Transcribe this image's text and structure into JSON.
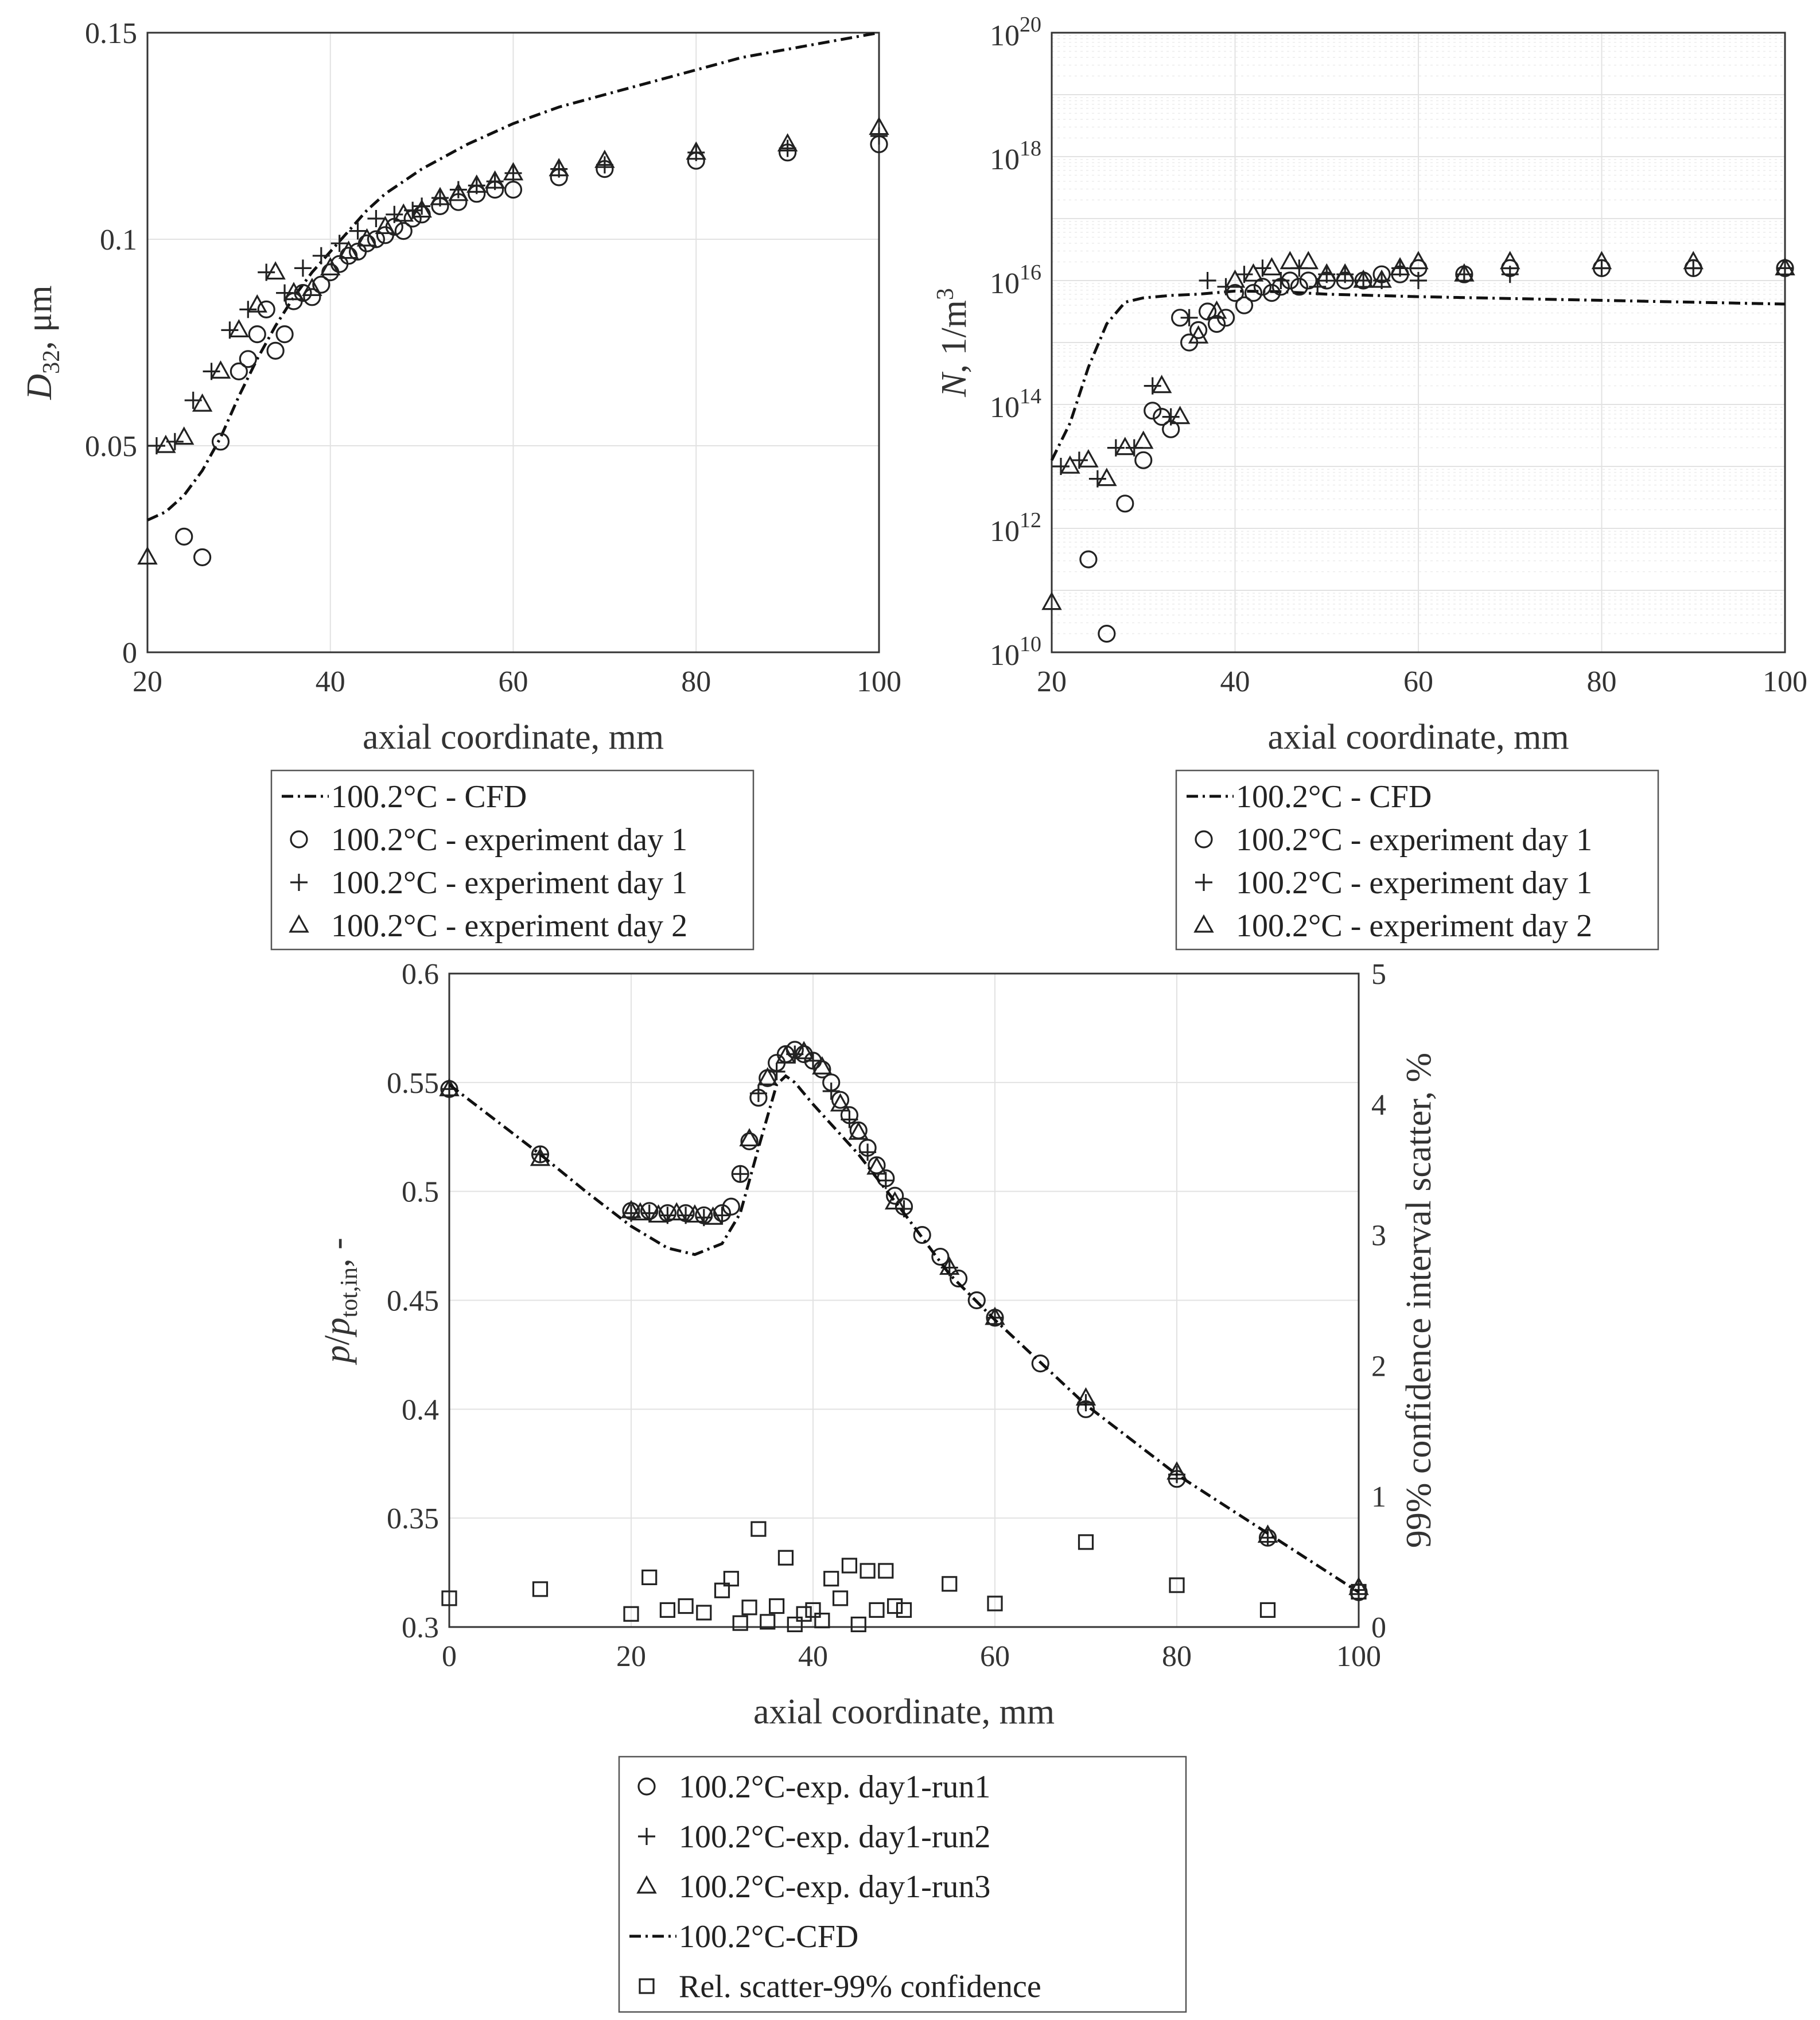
{
  "chart_data": [
    {
      "id": "d32",
      "type": "scatter",
      "xlabel": "axial coordinate, mm",
      "ylabel_main": "D",
      "ylabel_sub": "32",
      "ylabel_rest": ", μm",
      "xlim": [
        20,
        100
      ],
      "ylim": [
        0,
        0.15
      ],
      "xticks": [
        "20",
        "40",
        "60",
        "80",
        "100"
      ],
      "yticks": [
        "0",
        "0.05",
        "0.1",
        "0.15"
      ],
      "legend": [
        "100.2°C - CFD",
        "100.2°C - experiment day 1",
        "100.2°C - experiment day 1",
        "100.2°C - experiment day 2"
      ],
      "series": [
        {
          "name": "100.2°C - CFD",
          "marker": "line",
          "x": [
            20,
            22,
            24,
            26,
            28,
            30,
            32,
            34,
            36,
            38,
            40,
            42,
            44,
            46,
            48,
            50,
            55,
            60,
            65,
            70,
            75,
            80,
            85,
            90,
            95,
            100
          ],
          "y": [
            0.032,
            0.034,
            0.038,
            0.044,
            0.052,
            0.062,
            0.071,
            0.079,
            0.086,
            0.092,
            0.097,
            0.102,
            0.107,
            0.111,
            0.114,
            0.117,
            0.123,
            0.128,
            0.132,
            0.135,
            0.138,
            0.141,
            0.144,
            0.146,
            0.148,
            0.15
          ]
        },
        {
          "name": "100.2°C - experiment day 1 (circles)",
          "marker": "circle",
          "x": [
            24,
            26,
            28,
            30,
            31,
            32,
            33,
            34,
            35,
            36,
            37,
            38,
            39,
            40,
            41,
            42,
            43,
            44,
            45,
            46,
            47,
            48,
            49,
            50,
            52,
            54,
            56,
            58,
            60,
            65,
            70,
            80,
            90,
            100
          ],
          "y": [
            0.028,
            0.023,
            0.051,
            0.068,
            0.071,
            0.077,
            0.083,
            0.073,
            0.077,
            0.085,
            0.087,
            0.086,
            0.089,
            0.092,
            0.094,
            0.096,
            0.097,
            0.099,
            0.1,
            0.101,
            0.103,
            0.102,
            0.105,
            0.106,
            0.108,
            0.109,
            0.111,
            0.112,
            0.112,
            0.115,
            0.117,
            0.119,
            0.121,
            0.123
          ]
        },
        {
          "name": "100.2°C - experiment day 1 (plus)",
          "marker": "plus",
          "x": [
            21,
            23,
            25,
            27,
            29,
            31,
            33,
            35,
            37,
            39,
            41,
            43,
            45,
            47,
            49,
            50,
            52,
            54,
            56,
            58,
            60,
            65,
            70,
            80,
            90,
            100
          ],
          "y": [
            0.05,
            0.051,
            0.061,
            0.068,
            0.078,
            0.083,
            0.092,
            0.087,
            0.093,
            0.096,
            0.099,
            0.102,
            0.105,
            0.106,
            0.107,
            0.108,
            0.11,
            0.112,
            0.113,
            0.114,
            0.116,
            0.117,
            0.118,
            0.121,
            0.122,
            0.125
          ]
        },
        {
          "name": "100.2°C - experiment day 2",
          "marker": "triangle",
          "x": [
            20,
            22,
            24,
            26,
            28,
            30,
            32,
            34,
            36,
            38,
            40,
            42,
            44,
            46,
            48,
            50,
            52,
            54,
            56,
            58,
            60,
            65,
            70,
            80,
            90,
            100
          ],
          "y": [
            0.023,
            0.05,
            0.052,
            0.06,
            0.068,
            0.078,
            0.084,
            0.092,
            0.087,
            0.088,
            0.093,
            0.097,
            0.1,
            0.103,
            0.106,
            0.107,
            0.11,
            0.111,
            0.113,
            0.114,
            0.116,
            0.117,
            0.119,
            0.121,
            0.123,
            0.127
          ]
        }
      ]
    },
    {
      "id": "num",
      "type": "scatter",
      "yscale": "log",
      "xlabel": "axial coordinate, mm",
      "ylabel_main": "N",
      "ylabel_rest": ", 1/m",
      "ylabel_sup": "3",
      "xlim": [
        20,
        100
      ],
      "ylim_exp": [
        10,
        20
      ],
      "xticks": [
        "20",
        "40",
        "60",
        "80",
        "100"
      ],
      "yticks_base": "10",
      "yticks_exp": [
        "10",
        "12",
        "14",
        "16",
        "18",
        "20"
      ],
      "legend": [
        "100.2°C - CFD",
        "100.2°C - experiment day 1",
        "100.2°C - experiment day 1",
        "100.2°C - experiment day 2"
      ],
      "series": [
        {
          "name": "100.2°C - CFD",
          "marker": "line",
          "x": [
            20,
            22,
            24,
            26,
            28,
            30,
            33,
            36,
            40,
            45,
            50,
            60,
            70,
            80,
            90,
            100
          ],
          "y": [
            13.1,
            13.7,
            14.6,
            15.3,
            15.65,
            15.72,
            15.76,
            15.78,
            15.83,
            15.82,
            15.78,
            15.74,
            15.71,
            15.68,
            15.65,
            15.62
          ]
        },
        {
          "name": "100.2°C - experiment day 1 (circles)",
          "marker": "circle",
          "x": [
            24,
            26,
            28,
            30,
            31,
            32,
            33,
            34,
            35,
            36,
            37,
            38,
            39,
            40,
            41,
            42,
            43,
            44,
            45,
            46,
            47,
            48,
            50,
            52,
            54,
            56,
            58,
            60,
            65,
            70,
            80,
            90,
            100
          ],
          "y": [
            11.5,
            10.3,
            12.4,
            13.1,
            13.9,
            13.8,
            13.6,
            15.4,
            15.0,
            15.2,
            15.5,
            15.3,
            15.4,
            15.8,
            15.6,
            15.8,
            15.9,
            15.8,
            15.9,
            16.0,
            15.9,
            16.0,
            16.0,
            16.0,
            16.0,
            16.1,
            16.1,
            16.2,
            16.1,
            16.2,
            16.2,
            16.2,
            16.2
          ]
        },
        {
          "name": "100.2°C - experiment day 1 (plus)",
          "marker": "plus",
          "x": [
            21,
            23,
            25,
            27,
            29,
            31,
            33,
            35,
            37,
            39,
            41,
            43,
            45,
            47,
            49,
            50,
            52,
            54,
            56,
            58,
            60,
            65,
            70,
            80,
            90,
            100
          ],
          "y": [
            13.0,
            13.1,
            12.8,
            13.3,
            13.3,
            14.3,
            13.8,
            15.4,
            16.0,
            15.9,
            16.1,
            16.2,
            16.0,
            16.2,
            15.9,
            16.1,
            16.1,
            16.0,
            16.0,
            16.2,
            16.0,
            16.1,
            16.1,
            16.2,
            16.2,
            16.2
          ]
        },
        {
          "name": "100.2°C - experiment day 2",
          "marker": "triangle",
          "x": [
            20,
            22,
            24,
            26,
            28,
            30,
            32,
            34,
            36,
            38,
            40,
            42,
            44,
            46,
            48,
            50,
            52,
            54,
            56,
            58,
            60,
            65,
            70,
            80,
            90,
            100
          ],
          "y": [
            10.8,
            13.0,
            13.1,
            12.8,
            13.3,
            13.4,
            14.3,
            13.8,
            15.1,
            15.5,
            16.0,
            16.1,
            16.2,
            16.3,
            16.3,
            16.1,
            16.1,
            16.0,
            16.0,
            16.2,
            16.3,
            16.1,
            16.3,
            16.3,
            16.3,
            16.2
          ]
        }
      ]
    },
    {
      "id": "pres",
      "type": "scatter",
      "xlabel": "axial coordinate, mm",
      "ylabel_main": "p",
      "ylabel_mid": "/",
      "ylabel_main2": "p",
      "ylabel_sub": "tot,in",
      "ylabel_rest": ", -",
      "ylabel_right": "99% confidence interval scatter, %",
      "xlim": [
        0,
        100
      ],
      "ylim": [
        0.3,
        0.6
      ],
      "y2lim": [
        0,
        5
      ],
      "xticks": [
        "0",
        "20",
        "40",
        "60",
        "80",
        "100"
      ],
      "yticks": [
        "0.3",
        "0.35",
        "0.4",
        "0.45",
        "0.5",
        "0.55",
        "0.6"
      ],
      "y2ticks": [
        "0",
        "1",
        "2",
        "3",
        "4",
        "5"
      ],
      "legend": [
        "100.2°C-exp. day1-run1",
        "100.2°C-exp. day1-run2",
        "100.2°C-exp. day1-run3",
        "100.2°C-CFD",
        "Rel. scatter-99% confidence"
      ],
      "series": [
        {
          "name": "100.2°C-exp. day1-run1",
          "marker": "circle",
          "x": [
            0,
            10,
            20,
            22,
            24,
            26,
            28,
            30,
            31,
            32,
            33,
            34,
            35,
            36,
            37,
            38,
            39,
            40,
            41,
            42,
            43,
            44,
            45,
            46,
            47,
            48,
            49,
            50,
            52,
            54,
            56,
            58,
            60,
            65,
            70,
            80,
            90,
            100
          ],
          "y": [
            0.547,
            0.517,
            0.491,
            0.491,
            0.49,
            0.49,
            0.489,
            0.49,
            0.493,
            0.508,
            0.523,
            0.543,
            0.552,
            0.559,
            0.563,
            0.565,
            0.563,
            0.56,
            0.556,
            0.55,
            0.542,
            0.535,
            0.528,
            0.52,
            0.512,
            0.506,
            0.498,
            0.493,
            0.48,
            0.47,
            0.46,
            0.45,
            0.442,
            0.421,
            0.4,
            0.368,
            0.341,
            0.316
          ]
        },
        {
          "name": "100.2°C-exp. day1-run2",
          "marker": "plus",
          "x": [
            0,
            10,
            20,
            22,
            24,
            26,
            28,
            30,
            32,
            34,
            36,
            38,
            40,
            42,
            44,
            46,
            48,
            50,
            55,
            60,
            70,
            80,
            90,
            100
          ],
          "y": [
            0.547,
            0.517,
            0.49,
            0.49,
            0.489,
            0.489,
            0.488,
            0.489,
            0.508,
            0.545,
            0.555,
            0.563,
            0.56,
            0.546,
            0.533,
            0.518,
            0.505,
            0.492,
            0.465,
            0.442,
            0.403,
            0.37,
            0.341,
            0.317
          ]
        },
        {
          "name": "100.2°C-exp. day1-run3",
          "marker": "triangle",
          "x": [
            0,
            10,
            20,
            21,
            23,
            25,
            27,
            29,
            33,
            35,
            37,
            39,
            41,
            43,
            45,
            47,
            49,
            55,
            60,
            70,
            80,
            90,
            100
          ],
          "y": [
            0.547,
            0.515,
            0.491,
            0.49,
            0.489,
            0.49,
            0.489,
            0.488,
            0.524,
            0.552,
            0.562,
            0.564,
            0.557,
            0.54,
            0.527,
            0.511,
            0.495,
            0.465,
            0.442,
            0.405,
            0.371,
            0.342,
            0.318
          ]
        },
        {
          "name": "100.2°C-CFD",
          "marker": "line",
          "x": [
            0,
            5,
            10,
            15,
            20,
            24,
            27,
            30,
            32,
            34,
            36,
            37,
            38,
            40,
            45,
            50,
            55,
            60,
            70,
            80,
            90,
            100
          ],
          "y": [
            0.549,
            0.533,
            0.517,
            0.5,
            0.484,
            0.474,
            0.471,
            0.476,
            0.49,
            0.52,
            0.549,
            0.553,
            0.55,
            0.54,
            0.517,
            0.49,
            0.462,
            0.441,
            0.402,
            0.37,
            0.343,
            0.316
          ]
        },
        {
          "name": "Rel. scatter-99% confidence",
          "marker": "square",
          "axis": "right",
          "x": [
            0,
            10,
            20,
            22,
            24,
            26,
            28,
            30,
            31,
            32,
            33,
            34,
            35,
            36,
            37,
            38,
            39,
            40,
            41,
            42,
            43,
            44,
            45,
            46,
            47,
            48,
            49,
            50,
            55,
            60,
            70,
            80,
            90,
            100
          ],
          "y": [
            0.22,
            0.29,
            0.1,
            0.38,
            0.13,
            0.16,
            0.11,
            0.28,
            0.37,
            0.03,
            0.15,
            0.75,
            0.04,
            0.16,
            0.53,
            0.02,
            0.1,
            0.13,
            0.05,
            0.37,
            0.22,
            0.47,
            0.02,
            0.43,
            0.13,
            0.43,
            0.16,
            0.13,
            0.33,
            0.18,
            0.65,
            0.32,
            0.13,
            0.27
          ]
        }
      ]
    }
  ]
}
